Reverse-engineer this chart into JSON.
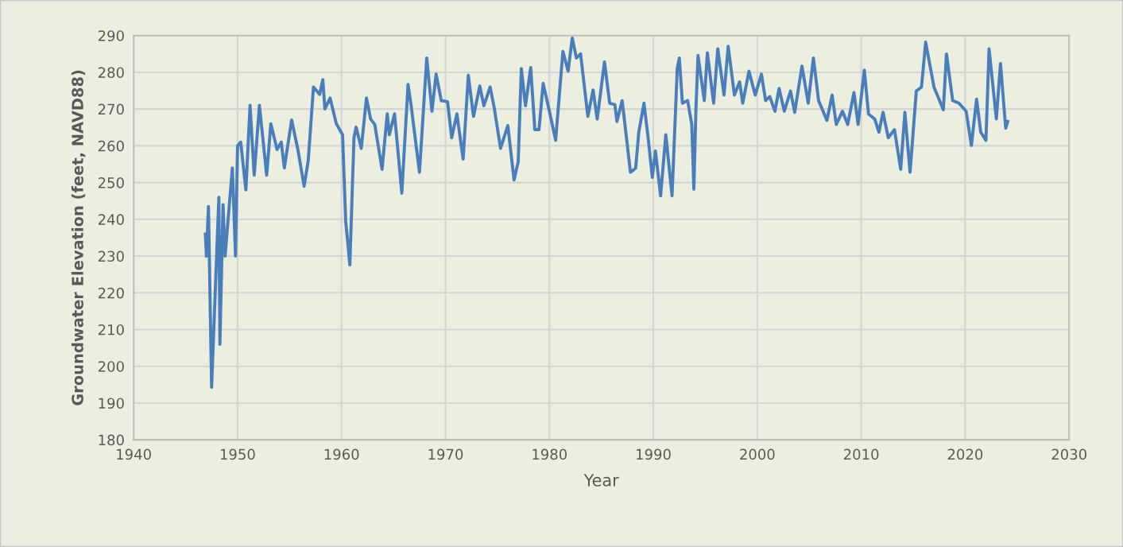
{
  "chart_data": {
    "type": "line",
    "xlabel": "Year",
    "ylabel": "Groundwater Elevation (feet, NAVD88)",
    "xlim": [
      1940,
      2030
    ],
    "xticks": [
      1940,
      1950,
      1960,
      1970,
      1980,
      1990,
      2000,
      2010,
      2020,
      2030
    ],
    "ylim": [
      180,
      290
    ],
    "yticks": [
      180,
      190,
      200,
      210,
      220,
      230,
      240,
      250,
      260,
      270,
      280,
      290
    ],
    "grid": true,
    "marker": "none",
    "line_style": "solid",
    "series": [
      {
        "color": "#4a7ebb",
        "x": [
          1946.9,
          1947.0,
          1947.2,
          1947.5,
          1948.2,
          1948.3,
          1948.6,
          1948.8,
          1949.5,
          1949.8,
          1950.0,
          1950.3,
          1950.8,
          1951.2,
          1951.6,
          1952.1,
          1952.8,
          1953.2,
          1953.8,
          1954.2,
          1954.5,
          1955.2,
          1955.8,
          1956.4,
          1956.8,
          1957.3,
          1957.9,
          1958.2,
          1958.4,
          1958.9,
          1959.5,
          1960.1,
          1960.4,
          1960.8,
          1961.2,
          1961.4,
          1961.9,
          1962.4,
          1962.8,
          1963.2,
          1963.9,
          1964.4,
          1964.6,
          1965.1,
          1965.8,
          1966.4,
          1966.7,
          1967.5,
          1968.2,
          1968.7,
          1969.1,
          1969.6,
          1970.2,
          1970.6,
          1971.1,
          1971.7,
          1972.2,
          1972.7,
          1973.3,
          1973.7,
          1974.3,
          1974.7,
          1975.3,
          1976.0,
          1976.6,
          1977.0,
          1977.3,
          1977.7,
          1978.2,
          1978.6,
          1979.0,
          1979.4,
          1980.0,
          1980.6,
          1981.3,
          1981.8,
          1982.2,
          1982.6,
          1983.0,
          1983.7,
          1984.2,
          1984.6,
          1985.3,
          1985.8,
          1986.3,
          1986.5,
          1987.0,
          1987.8,
          1988.3,
          1988.6,
          1989.1,
          1989.5,
          1989.9,
          1990.2,
          1990.7,
          1991.2,
          1991.8,
          1992.3,
          1992.5,
          1992.8,
          1993.3,
          1993.7,
          1993.9,
          1994.1,
          1994.3,
          1994.9,
          1995.2,
          1995.8,
          1996.2,
          1996.8,
          1997.2,
          1997.8,
          1998.3,
          1998.6,
          1999.2,
          1999.8,
          2000.4,
          2000.8,
          2001.2,
          2001.7,
          2002.1,
          2002.6,
          2003.2,
          2003.6,
          2004.3,
          2004.9,
          2005.4,
          2005.9,
          2006.7,
          2007.2,
          2007.6,
          2008.2,
          2008.7,
          2009.3,
          2009.7,
          2010.3,
          2010.7,
          2011.3,
          2011.7,
          2012.1,
          2012.6,
          2013.2,
          2013.8,
          2014.2,
          2014.7,
          2015.3,
          2015.8,
          2016.2,
          2017.0,
          2017.9,
          2018.2,
          2018.8,
          2019.4,
          2020.1,
          2020.6,
          2021.1,
          2021.5,
          2022.0,
          2022.3,
          2023.0,
          2023.4,
          2023.9,
          2024.1
        ],
        "values": [
          236,
          230,
          243.5,
          194.3,
          246,
          206,
          244,
          230,
          254,
          230,
          260,
          261,
          248,
          271,
          252,
          271,
          252,
          266,
          259,
          261,
          254,
          267,
          259,
          249,
          256,
          276,
          274,
          278,
          270,
          273,
          266,
          263,
          239.6,
          227.6,
          262.2,
          265.1,
          259.3,
          273,
          267.3,
          265.8,
          253.6,
          268.7,
          263,
          268.7,
          247.1,
          276.7,
          270.9,
          252.8,
          283.9,
          269.4,
          279.5,
          272.3,
          272,
          262.2,
          268.7,
          256.4,
          279.2,
          268,
          276.3,
          270.9,
          276,
          270.2,
          259.3,
          265.5,
          250.7,
          255.7,
          281,
          270.9,
          281.3,
          264.4,
          264.4,
          277,
          269.4,
          261.5,
          285.7,
          280.3,
          289.3,
          283.9,
          285,
          268,
          275.2,
          267.3,
          282.8,
          271.6,
          271.2,
          266.6,
          272.3,
          252.8,
          253.9,
          263.7,
          271.6,
          262.2,
          251.4,
          258.6,
          246.4,
          263,
          246.4,
          281,
          283.9,
          271.6,
          272.3,
          265.8,
          248.2,
          270.2,
          284.6,
          272.3,
          285.3,
          271.6,
          286.4,
          273.8,
          287.1,
          273.8,
          277.4,
          271.6,
          280.3,
          273.8,
          279.5,
          272.3,
          273.4,
          269.4,
          275.6,
          269.4,
          274.9,
          269.1,
          281.7,
          271.6,
          283.9,
          272.3,
          266.9,
          273.8,
          265.8,
          269.4,
          265.8,
          274.5,
          265.8,
          280.6,
          268.7,
          267.3,
          263.7,
          269.1,
          262.2,
          264.4,
          253.6,
          269.1,
          252.8,
          274.9,
          276,
          288.2,
          276,
          269.8,
          285,
          272.3,
          271.6,
          269.4,
          260.1,
          272.7,
          263.7,
          261.5,
          286.4,
          267.3,
          282.4,
          264.8,
          266.6
        ]
      }
    ]
  }
}
